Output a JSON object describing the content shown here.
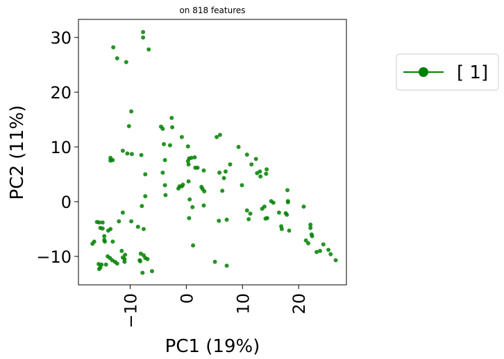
{
  "chart_data": {
    "type": "scatter",
    "title": "on 818 features",
    "xlabel": "PC1 (19%)",
    "ylabel": "PC2 (11%)",
    "xlim": [
      -19.2,
      28.5
    ],
    "ylim": [
      -15.2,
      33.3
    ],
    "xticks": [
      -10,
      0,
      10,
      20
    ],
    "yticks": [
      -10,
      0,
      10,
      20,
      30
    ],
    "xtick_labels": [
      "−10",
      "0",
      "10",
      "20"
    ],
    "ytick_labels": [
      "−10",
      "0",
      "10",
      "20",
      "30"
    ],
    "grid": false,
    "legend_position": "outside-right",
    "series": [
      {
        "name": "[ 1]",
        "color": "#008000",
        "marker": "circle",
        "points": [
          [
            -7.7,
            31.0
          ],
          [
            -7.7,
            30.0
          ],
          [
            -6.7,
            27.8
          ],
          [
            -13.0,
            28.2
          ],
          [
            -12.3,
            26.2
          ],
          [
            -10.7,
            25.5
          ],
          [
            -9.8,
            16.5
          ],
          [
            -10.2,
            13.8
          ],
          [
            -11.3,
            9.3
          ],
          [
            -10.5,
            8.8
          ],
          [
            -9.7,
            8.7
          ],
          [
            -8.0,
            8.5
          ],
          [
            -13.5,
            8.0
          ],
          [
            -13.5,
            7.5
          ],
          [
            -13.1,
            7.6
          ],
          [
            -7.3,
            5.0
          ],
          [
            -7.3,
            1.0
          ],
          [
            -7.9,
            -0.8
          ],
          [
            -11.3,
            -2.0
          ],
          [
            -12.0,
            -3.6
          ],
          [
            -9.8,
            -3.6
          ],
          [
            -8.6,
            -4.6
          ],
          [
            -7.6,
            -5.0
          ],
          [
            -13.5,
            -5.0
          ],
          [
            -13.9,
            -5.3
          ],
          [
            -13.1,
            -7.3
          ],
          [
            -14.5,
            -7.3
          ],
          [
            -15.3,
            -4.8
          ],
          [
            -15.9,
            -3.7
          ],
          [
            -15.5,
            -3.8
          ],
          [
            -14.9,
            -3.8
          ],
          [
            -14.9,
            -4.9
          ],
          [
            -14.6,
            -6.3
          ],
          [
            -14.6,
            -7.0
          ],
          [
            -16.4,
            -7.3
          ],
          [
            -16.7,
            -7.7
          ],
          [
            -11.5,
            -9.0
          ],
          [
            -10.9,
            -9.7
          ],
          [
            -11.3,
            -10.2
          ],
          [
            -11.0,
            -11.0
          ],
          [
            -8.1,
            -9.5
          ],
          [
            -7.6,
            -9.8
          ],
          [
            -7.3,
            -10.3
          ],
          [
            -6.9,
            -10.5
          ],
          [
            -14.0,
            -10.0
          ],
          [
            -13.6,
            -10.3
          ],
          [
            -13.2,
            -10.7
          ],
          [
            -12.7,
            -11.0
          ],
          [
            -12.3,
            -11.3
          ],
          [
            -14.3,
            -11.5
          ],
          [
            -15.1,
            -11.5
          ],
          [
            -15.6,
            -11.4
          ],
          [
            -15.3,
            -12.0
          ],
          [
            -15.5,
            -12.3
          ],
          [
            -8.3,
            -10.7
          ],
          [
            -8.2,
            -10.9
          ],
          [
            -6.1,
            -12.7
          ],
          [
            -7.8,
            -13.0
          ],
          [
            -11.0,
            -10.5
          ],
          [
            -4.5,
            13.7
          ],
          [
            -4.2,
            13.3
          ],
          [
            -2.6,
            15.3
          ],
          [
            -2.5,
            13.6
          ],
          [
            -4.0,
            10.5
          ],
          [
            -2.9,
            10.3
          ],
          [
            -3.8,
            7.6
          ],
          [
            -4.2,
            5.3
          ],
          [
            -3.8,
            3.0
          ],
          [
            -3.7,
            1.2
          ],
          [
            -0.8,
            11.8
          ],
          [
            -0.8,
            2.8
          ],
          [
            -0.6,
            3.1
          ],
          [
            -1.4,
            2.4
          ],
          [
            -1.2,
            2.8
          ],
          [
            0.3,
            10.1
          ],
          [
            0.3,
            7.4
          ],
          [
            0.5,
            7.9
          ],
          [
            0.9,
            8.0
          ],
          [
            1.5,
            8.1
          ],
          [
            0.4,
            6.8
          ],
          [
            1.6,
            6.2
          ],
          [
            2.0,
            6.2
          ],
          [
            0.4,
            3.7
          ],
          [
            0.6,
            0.4
          ],
          [
            0.5,
            -3.0
          ],
          [
            1.1,
            -1.0
          ],
          [
            1.2,
            -8.0
          ],
          [
            2.7,
            2.7
          ],
          [
            2.9,
            2.3
          ],
          [
            3.2,
            1.9
          ],
          [
            3.1,
            -0.7
          ],
          [
            3.1,
            5.7
          ],
          [
            5.4,
            11.8
          ],
          [
            6.0,
            12.2
          ],
          [
            5.9,
            5.3
          ],
          [
            6.7,
            4.3
          ],
          [
            6.4,
            2.0
          ],
          [
            5.8,
            -3.5
          ],
          [
            7.2,
            -3.3
          ],
          [
            7.0,
            5.5
          ],
          [
            7.8,
            6.8
          ],
          [
            5.1,
            -11.0
          ],
          [
            7.2,
            -11.7
          ],
          [
            9.3,
            10.0
          ],
          [
            9.9,
            3.0
          ],
          [
            10.8,
            8.6
          ],
          [
            10.8,
            -1.6
          ],
          [
            11.1,
            -3.2
          ],
          [
            11.4,
            -2.2
          ],
          [
            11.6,
            6.8
          ],
          [
            12.4,
            7.8
          ],
          [
            12.6,
            5.2
          ],
          [
            13.1,
            5.5
          ],
          [
            13.2,
            4.6
          ],
          [
            14.3,
            5.9
          ],
          [
            14.2,
            5.1
          ],
          [
            13.5,
            -1.3
          ],
          [
            13.9,
            -0.9
          ],
          [
            14.4,
            -3.0
          ],
          [
            14.1,
            -3.1
          ],
          [
            15.1,
            0.1
          ],
          [
            15.5,
            -0.2
          ],
          [
            16.5,
            -2.0
          ],
          [
            16.9,
            -4.5
          ],
          [
            17.0,
            -5.0
          ],
          [
            17.7,
            -2.1
          ],
          [
            17.9,
            -2.4
          ],
          [
            18.1,
            -0.1
          ],
          [
            18.1,
            0.1
          ],
          [
            18.3,
            -5.3
          ],
          [
            18.0,
            2.1
          ],
          [
            20.9,
            -0.9
          ],
          [
            21.3,
            -7.1
          ],
          [
            21.7,
            -7.6
          ],
          [
            22.1,
            -4.2
          ],
          [
            22.1,
            -4.8
          ],
          [
            22.3,
            -6.0
          ],
          [
            22.4,
            -6.3
          ],
          [
            23.2,
            -9.2
          ],
          [
            23.8,
            -9.0
          ],
          [
            24.4,
            -7.8
          ],
          [
            25.3,
            -8.8
          ],
          [
            25.7,
            -9.6
          ],
          [
            26.6,
            -10.7
          ]
        ]
      }
    ]
  }
}
